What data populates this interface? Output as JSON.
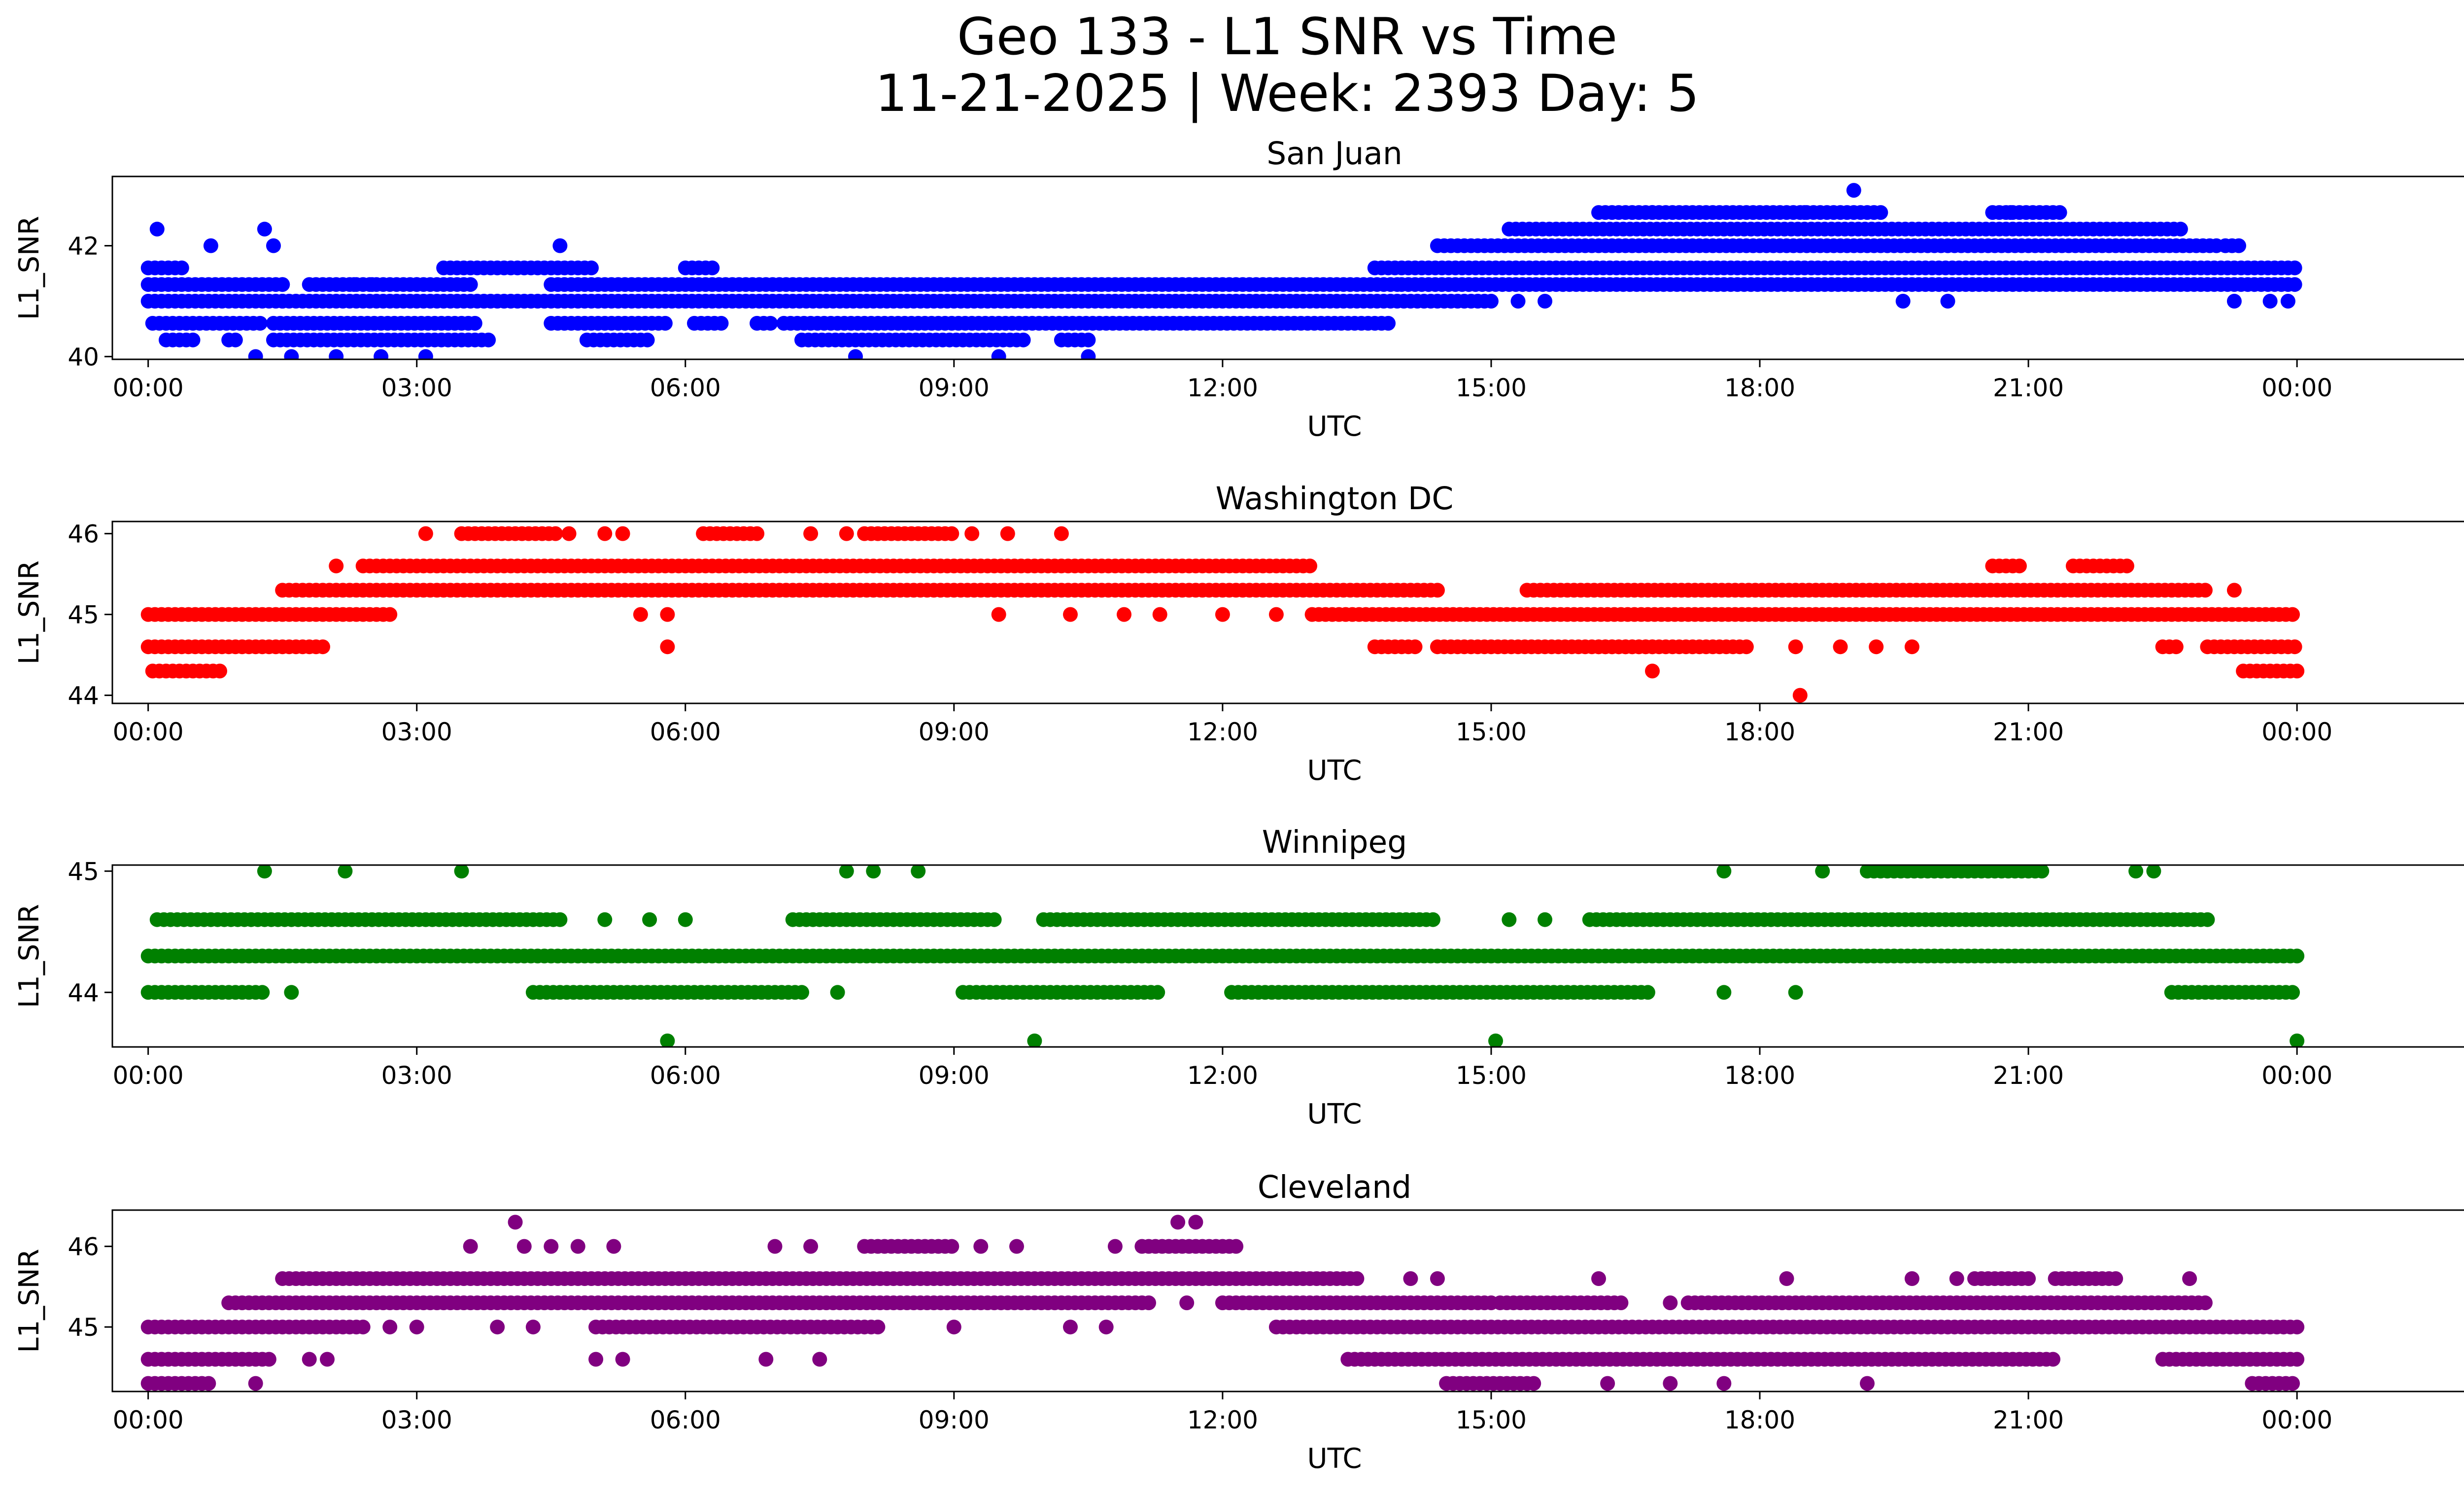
{
  "figure": {
    "title_line1": "Geo 133 - L1 SNR vs Time",
    "title_line2": "11-21-2025 | Week: 2393 Day: 5"
  },
  "chart_data": [
    {
      "type": "scatter",
      "title": "San Juan",
      "xlabel": "UTC",
      "ylabel": "L1_SNR",
      "color": "#0000ff",
      "xlim": [
        -0.4,
        26.9
      ],
      "ylim": [
        39.95,
        43.25
      ],
      "yticks": [
        40,
        42
      ],
      "xticks": [
        0,
        3,
        6,
        9,
        12,
        15,
        18,
        21,
        24
      ],
      "xtick_labels": [
        "00:00",
        "03:00",
        "06:00",
        "09:00",
        "12:00",
        "15:00",
        "18:00",
        "21:00",
        "00:00"
      ],
      "x_unit": "hours UTC",
      "bands": [
        {
          "y": 40.3,
          "segments": [
            [
              0.2,
              0.5
            ],
            [
              0.9,
              1.0
            ],
            [
              1.4,
              3.8
            ],
            [
              4.9,
              5.6
            ],
            [
              7.3,
              9.8
            ],
            [
              10.2,
              10.5
            ]
          ]
        },
        {
          "y": 40.6,
          "segments": [
            [
              0.05,
              1.3
            ],
            [
              1.4,
              3.7
            ],
            [
              4.5,
              5.8
            ],
            [
              6.1,
              6.4
            ],
            [
              6.8,
              7.0
            ],
            [
              7.1,
              13.9
            ]
          ]
        },
        {
          "y": 41.0,
          "segments": [
            [
              0.0,
              1.5
            ],
            [
              1.5,
              15.0
            ]
          ]
        },
        {
          "y": 41.3,
          "segments": [
            [
              0.0,
              1.5
            ],
            [
              1.8,
              3.6
            ],
            [
              4.5,
              14.0
            ],
            [
              14.0,
              24.0
            ]
          ]
        },
        {
          "y": 41.6,
          "segments": [
            [
              0.0,
              0.4
            ],
            [
              3.3,
              5.0
            ],
            [
              6.0,
              6.3
            ],
            [
              13.7,
              24.0
            ]
          ]
        },
        {
          "y": 42.0,
          "segments": [
            [
              14.4,
              23.1
            ],
            [
              23.2,
              23.4
            ]
          ]
        },
        {
          "y": 42.3,
          "segments": [
            [
              15.2,
              22.7
            ]
          ]
        },
        {
          "y": 42.6,
          "segments": [
            [
              16.2,
              19.4
            ],
            [
              20.6,
              21.4
            ]
          ]
        }
      ],
      "points": [
        [
          0.1,
          42.3
        ],
        [
          1.3,
          42.3
        ],
        [
          4.6,
          42.0
        ],
        [
          0.7,
          42.0
        ],
        [
          1.4,
          42.0
        ],
        [
          19.05,
          43.0
        ],
        [
          16.8,
          42.6
        ],
        [
          18.5,
          42.6
        ],
        [
          20.8,
          42.6
        ],
        [
          1.2,
          40.0
        ],
        [
          1.6,
          40.0
        ],
        [
          2.1,
          40.0
        ],
        [
          2.6,
          40.0
        ],
        [
          3.1,
          40.0
        ],
        [
          7.9,
          40.0
        ],
        [
          9.5,
          40.0
        ],
        [
          10.5,
          40.0
        ],
        [
          1.5,
          41.3
        ],
        [
          2.3,
          41.3
        ],
        [
          2.5,
          41.3
        ],
        [
          3.0,
          41.3
        ],
        [
          15.3,
          41.0
        ],
        [
          15.6,
          41.0
        ],
        [
          19.6,
          41.0
        ],
        [
          20.1,
          41.0
        ],
        [
          23.3,
          41.0
        ],
        [
          23.7,
          41.0
        ],
        [
          23.9,
          41.0
        ]
      ]
    },
    {
      "type": "scatter",
      "title": "Washington DC",
      "xlabel": "UTC",
      "ylabel": "L1_SNR",
      "color": "#ff0000",
      "xlim": [
        -0.4,
        26.9
      ],
      "ylim": [
        43.9,
        46.15
      ],
      "yticks": [
        44,
        45,
        46
      ],
      "xticks": [
        0,
        3,
        6,
        9,
        12,
        15,
        18,
        21,
        24
      ],
      "xtick_labels": [
        "00:00",
        "03:00",
        "06:00",
        "09:00",
        "12:00",
        "15:00",
        "18:00",
        "21:00",
        "00:00"
      ],
      "x_unit": "hours UTC",
      "bands": [
        {
          "y": 44.3,
          "segments": [
            [
              0.05,
              0.85
            ],
            [
              23.4,
              24.0
            ]
          ]
        },
        {
          "y": 44.6,
          "segments": [
            [
              0.0,
              2.0
            ],
            [
              13.7,
              14.2
            ],
            [
              14.4,
              16.8
            ],
            [
              16.2,
              17.9
            ],
            [
              22.5,
              22.7
            ],
            [
              23.0,
              24.0
            ]
          ]
        },
        {
          "y": 45.0,
          "segments": [
            [
              0.0,
              2.7
            ],
            [
              13.0,
              24.0
            ]
          ]
        },
        {
          "y": 45.3,
          "segments": [
            [
              1.5,
              14.4
            ],
            [
              15.4,
              17.2
            ],
            [
              17.2,
              23.0
            ]
          ]
        },
        {
          "y": 45.6,
          "segments": [
            [
              2.4,
              13.0
            ],
            [
              20.6,
              20.9
            ],
            [
              21.5,
              22.1
            ]
          ]
        },
        {
          "y": 46.0,
          "segments": [
            [
              3.5,
              4.6
            ],
            [
              6.2,
              6.8
            ],
            [
              8.0,
              9.0
            ]
          ]
        }
      ],
      "points": [
        [
          2.1,
          45.6
        ],
        [
          3.1,
          46.0
        ],
        [
          4.7,
          46.0
        ],
        [
          5.1,
          46.0
        ],
        [
          5.3,
          46.0
        ],
        [
          7.4,
          46.0
        ],
        [
          7.8,
          46.0
        ],
        [
          9.2,
          46.0
        ],
        [
          9.6,
          46.0
        ],
        [
          10.2,
          46.0
        ],
        [
          5.5,
          45.0
        ],
        [
          5.8,
          45.0
        ],
        [
          9.5,
          45.0
        ],
        [
          10.3,
          45.0
        ],
        [
          10.9,
          45.0
        ],
        [
          11.3,
          45.0
        ],
        [
          12.0,
          45.0
        ],
        [
          12.6,
          45.0
        ],
        [
          5.8,
          44.6
        ],
        [
          18.4,
          44.6
        ],
        [
          18.9,
          44.6
        ],
        [
          19.3,
          44.6
        ],
        [
          19.7,
          44.6
        ],
        [
          16.8,
          44.3
        ],
        [
          18.45,
          44.0
        ],
        [
          23.3,
          45.3
        ]
      ]
    },
    {
      "type": "scatter",
      "title": "Winnipeg",
      "xlabel": "UTC",
      "ylabel": "L1_SNR",
      "color": "#008000",
      "xlim": [
        -0.4,
        26.9
      ],
      "ylim": [
        43.55,
        45.05
      ],
      "yticks": [
        44,
        45
      ],
      "xticks": [
        0,
        3,
        6,
        9,
        12,
        15,
        18,
        21,
        24
      ],
      "xtick_labels": [
        "00:00",
        "03:00",
        "06:00",
        "09:00",
        "12:00",
        "15:00",
        "18:00",
        "21:00",
        "00:00"
      ],
      "x_unit": "hours UTC",
      "bands": [
        {
          "y": 44.0,
          "segments": [
            [
              0.0,
              1.3
            ],
            [
              4.3,
              7.3
            ],
            [
              9.1,
              11.3
            ],
            [
              12.1,
              16.8
            ],
            [
              22.6,
              24.0
            ]
          ]
        },
        {
          "y": 44.3,
          "segments": [
            [
              0.0,
              24.0
            ]
          ]
        },
        {
          "y": 44.6,
          "segments": [
            [
              0.1,
              4.6
            ],
            [
              7.2,
              9.5
            ],
            [
              10.0,
              14.4
            ],
            [
              16.1,
              23.0
            ]
          ]
        },
        {
          "y": 45.0,
          "segments": [
            [
              19.2,
              21.2
            ]
          ]
        }
      ],
      "points": [
        [
          1.3,
          45.0
        ],
        [
          2.2,
          45.0
        ],
        [
          3.5,
          45.0
        ],
        [
          7.8,
          45.0
        ],
        [
          8.1,
          45.0
        ],
        [
          8.6,
          45.0
        ],
        [
          17.6,
          45.0
        ],
        [
          18.7,
          45.0
        ],
        [
          22.2,
          45.0
        ],
        [
          22.4,
          45.0
        ],
        [
          1.6,
          44.0
        ],
        [
          7.7,
          44.0
        ],
        [
          13.0,
          44.0
        ],
        [
          17.6,
          44.0
        ],
        [
          18.4,
          44.0
        ],
        [
          5.1,
          44.6
        ],
        [
          5.6,
          44.6
        ],
        [
          6.0,
          44.6
        ],
        [
          15.2,
          44.6
        ],
        [
          15.6,
          44.6
        ],
        [
          5.8,
          43.6
        ],
        [
          9.9,
          43.6
        ],
        [
          15.05,
          43.6
        ],
        [
          24.0,
          43.6
        ]
      ]
    },
    {
      "type": "scatter",
      "title": "Cleveland",
      "xlabel": "UTC",
      "ylabel": "L1_SNR",
      "color": "#800080",
      "xlim": [
        -0.4,
        26.9
      ],
      "ylim": [
        44.2,
        46.45
      ],
      "yticks": [
        45,
        46
      ],
      "xticks": [
        0,
        3,
        6,
        9,
        12,
        15,
        18,
        21,
        24
      ],
      "xtick_labels": [
        "00:00",
        "03:00",
        "06:00",
        "09:00",
        "12:00",
        "15:00",
        "18:00",
        "21:00",
        "00:00"
      ],
      "x_unit": "hours UTC",
      "bands": [
        {
          "y": 44.3,
          "segments": [
            [
              0.0,
              0.7
            ],
            [
              14.5,
              15.5
            ],
            [
              23.5,
              24.0
            ]
          ]
        },
        {
          "y": 44.6,
          "segments": [
            [
              0.0,
              1.4
            ],
            [
              13.4,
              21.3
            ],
            [
              22.5,
              24.0
            ]
          ]
        },
        {
          "y": 45.0,
          "segments": [
            [
              0.0,
              2.4
            ],
            [
              5.0,
              8.2
            ],
            [
              12.6,
              24.0
            ]
          ]
        },
        {
          "y": 45.3,
          "segments": [
            [
              0.9,
              11.2
            ],
            [
              12.0,
              15.0
            ],
            [
              15.1,
              16.5
            ],
            [
              17.2,
              23.0
            ]
          ]
        },
        {
          "y": 45.6,
          "segments": [
            [
              1.5,
              13.5
            ],
            [
              20.4,
              21.0
            ],
            [
              21.3,
              22.0
            ]
          ]
        },
        {
          "y": 46.0,
          "segments": [
            [
              8.0,
              9.0
            ],
            [
              11.1,
              12.2
            ]
          ]
        }
      ],
      "points": [
        [
          3.6,
          46.0
        ],
        [
          4.2,
          46.0
        ],
        [
          4.5,
          46.0
        ],
        [
          4.8,
          46.0
        ],
        [
          5.2,
          46.0
        ],
        [
          7.0,
          46.0
        ],
        [
          7.4,
          46.0
        ],
        [
          9.3,
          46.0
        ],
        [
          9.7,
          46.0
        ],
        [
          10.8,
          46.0
        ],
        [
          4.1,
          46.3
        ],
        [
          11.5,
          46.3
        ],
        [
          11.7,
          46.3
        ],
        [
          1.8,
          44.6
        ],
        [
          2.0,
          44.6
        ],
        [
          5.0,
          44.6
        ],
        [
          5.3,
          44.6
        ],
        [
          6.9,
          44.6
        ],
        [
          7.5,
          44.6
        ],
        [
          1.2,
          44.3
        ],
        [
          16.3,
          44.3
        ],
        [
          17.0,
          44.3
        ],
        [
          17.6,
          44.3
        ],
        [
          19.2,
          44.3
        ],
        [
          2.7,
          45.0
        ],
        [
          3.0,
          45.0
        ],
        [
          3.9,
          45.0
        ],
        [
          4.3,
          45.0
        ],
        [
          9.0,
          45.0
        ],
        [
          10.3,
          45.0
        ],
        [
          10.7,
          45.0
        ],
        [
          11.6,
          45.3
        ],
        [
          14.1,
          45.6
        ],
        [
          14.4,
          45.6
        ],
        [
          16.2,
          45.6
        ],
        [
          18.3,
          45.6
        ],
        [
          19.7,
          45.6
        ],
        [
          20.2,
          45.6
        ],
        [
          22.8,
          45.6
        ],
        [
          17.0,
          45.3
        ]
      ]
    }
  ]
}
